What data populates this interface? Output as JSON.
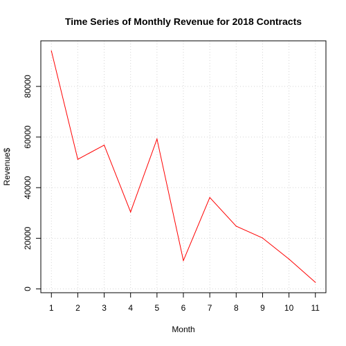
{
  "chart_data": {
    "type": "line",
    "title": "Time Series of Monthly Revenue for 2018 Contracts",
    "xlabel": "Month",
    "ylabel": "Revenue$",
    "x": [
      1,
      2,
      3,
      4,
      5,
      6,
      7,
      8,
      9,
      10,
      11
    ],
    "series": [
      {
        "values": [
          94000,
          51200,
          56800,
          30400,
          59200,
          11200,
          36100,
          24800,
          20100,
          11800,
          2600
        ]
      }
    ],
    "xlim": [
      0.6,
      11.4
    ],
    "ylim": [
      -1500,
      98000
    ],
    "x_ticks": [
      "1",
      "2",
      "3",
      "4",
      "5",
      "6",
      "7",
      "8",
      "9",
      "10",
      "11"
    ],
    "y_ticks": [
      "0",
      "20000",
      "40000",
      "60000",
      "80000"
    ],
    "grid": true,
    "legend": "none",
    "colors": {
      "line": "#ff0000",
      "grid": "#d3d3d3",
      "axis": "#000000"
    }
  }
}
